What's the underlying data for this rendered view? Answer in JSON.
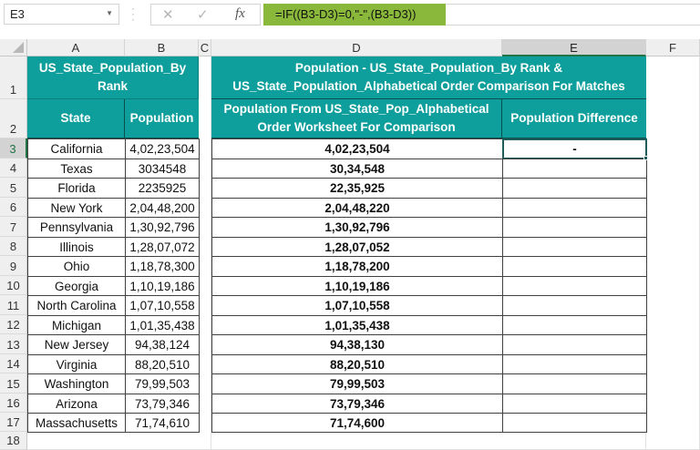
{
  "formula_bar": {
    "name_box": "E3",
    "cancel_icon": "✕",
    "enter_icon": "✓",
    "function_icon": "fx",
    "formula": "=IF((B3-D3)=0,\"-\",(B3-D3))"
  },
  "columns": [
    "A",
    "B",
    "C",
    "D",
    "E",
    "F"
  ],
  "selected_cell": "E3",
  "rows": [
    "1",
    "2",
    "3",
    "4",
    "5",
    "6",
    "7",
    "8",
    "9",
    "10",
    "11",
    "12",
    "13",
    "14",
    "15",
    "16",
    "17",
    "18"
  ],
  "table_left": {
    "title": "US_State_Population_By Rank",
    "headers": {
      "state": "State",
      "population": "Population"
    },
    "data": [
      {
        "state": "California",
        "population": "4,02,23,504"
      },
      {
        "state": "Texas",
        "population": "3034548"
      },
      {
        "state": "Florida",
        "population": "2235925"
      },
      {
        "state": "New York",
        "population": "2,04,48,200"
      },
      {
        "state": "Pennsylvania",
        "population": "1,30,92,796"
      },
      {
        "state": "Illinois",
        "population": "1,28,07,072"
      },
      {
        "state": "Ohio",
        "population": "1,18,78,300"
      },
      {
        "state": "Georgia",
        "population": "1,10,19,186"
      },
      {
        "state": "North Carolina",
        "population": "1,07,10,558"
      },
      {
        "state": "Michigan",
        "population": "1,01,35,438"
      },
      {
        "state": "New Jersey",
        "population": "94,38,124"
      },
      {
        "state": "Virginia",
        "population": "88,20,510"
      },
      {
        "state": "Washington",
        "population": "79,99,503"
      },
      {
        "state": "Arizona",
        "population": "73,79,346"
      },
      {
        "state": "Massachusetts",
        "population": "71,74,610"
      }
    ]
  },
  "table_right": {
    "title": "Population - US_State_Population_By Rank & US_State_Population_Alphabetical Order Comparison For Matches",
    "headers": {
      "compare": "Population From US_State_Pop_Alphabetical Order Worksheet For Comparison",
      "difference": "Population Difference"
    },
    "data": [
      {
        "compare": "4,02,23,504",
        "difference": "-"
      },
      {
        "compare": "30,34,548",
        "difference": ""
      },
      {
        "compare": "22,35,925",
        "difference": ""
      },
      {
        "compare": "2,04,48,220",
        "difference": ""
      },
      {
        "compare": "1,30,92,796",
        "difference": ""
      },
      {
        "compare": "1,28,07,052",
        "difference": ""
      },
      {
        "compare": "1,18,78,200",
        "difference": ""
      },
      {
        "compare": "1,10,19,186",
        "difference": ""
      },
      {
        "compare": "1,07,10,558",
        "difference": ""
      },
      {
        "compare": "1,01,35,438",
        "difference": ""
      },
      {
        "compare": "94,38,130",
        "difference": ""
      },
      {
        "compare": "88,20,510",
        "difference": ""
      },
      {
        "compare": "79,99,503",
        "difference": ""
      },
      {
        "compare": "73,79,346",
        "difference": ""
      },
      {
        "compare": "71,74,600",
        "difference": ""
      }
    ]
  },
  "colors": {
    "header_fill": "#0e9e9b",
    "formula_highlight": "#8ab83a",
    "selection": "#1f5c5a"
  }
}
